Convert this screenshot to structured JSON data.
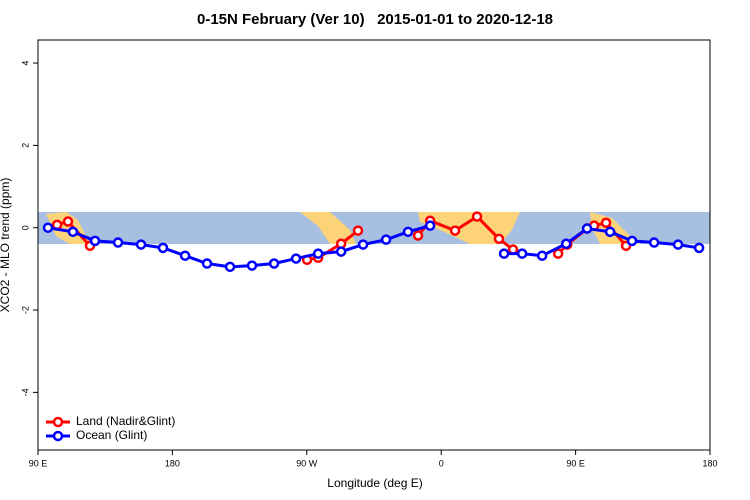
{
  "chart_data": {
    "type": "line",
    "title": "0-15N February (Ver 10)   2015-01-01 to 2020-12-18",
    "x_label": "Longitude (deg E)",
    "y_label": "XCO2 - MLO trend (ppm)",
    "xlim": [
      90,
      540
    ],
    "ylim": [
      -5.4,
      4.56
    ],
    "xticks": [
      {
        "value": 90,
        "label": "90 E"
      },
      {
        "value": 180,
        "label": "180"
      },
      {
        "value": 270,
        "label": "90 W"
      },
      {
        "value": 360,
        "label": "0"
      },
      {
        "value": 450,
        "label": "90 E"
      },
      {
        "value": 540,
        "label": "180"
      }
    ],
    "yticks": [
      4,
      2,
      0,
      -2,
      -4
    ],
    "legend": "bottom-left",
    "series": [
      {
        "name": "Land (Nadir&Glint)",
        "color": "#ff0000",
        "x": [
          102.8,
          110.1,
          124.8,
          null,
          270.2,
          277.6,
          293,
          304.3,
          null,
          344.5,
          352.6,
          369.3,
          384,
          398.7,
          408.1,
          null,
          438.3,
          444.4,
          457.7,
          462.4,
          470.4,
          483.8
        ],
        "values": [
          0.07,
          0.15,
          -0.44,
          null,
          -0.78,
          -0.73,
          -0.39,
          -0.07,
          null,
          -0.19,
          0.17,
          -0.07,
          0.27,
          -0.27,
          -0.53,
          null,
          -0.63,
          -0.41,
          -0.02,
          0.05,
          0.12,
          -0.44
        ]
      },
      {
        "name": "Ocean (Glint)",
        "color": "#0000ff",
        "x": [
          96.7,
          113.4,
          128.2,
          143.6,
          159,
          173.7,
          188.5,
          203.2,
          218.6,
          233.3,
          248.1,
          262.8,
          277.6,
          293,
          307.7,
          323.1,
          337.8,
          352.6,
          null,
          402.1,
          414.2,
          427.6,
          443.7,
          457.7,
          473.1,
          487.8,
          502.6,
          518.6,
          532.7
        ],
        "values": [
          0,
          -0.1,
          -0.32,
          -0.36,
          -0.41,
          -0.49,
          -0.68,
          -0.87,
          -0.95,
          -0.92,
          -0.87,
          -0.75,
          -0.63,
          -0.58,
          -0.41,
          -0.29,
          -0.1,
          0.05,
          null,
          -0.63,
          -0.63,
          -0.68,
          -0.39,
          -0.02,
          -0.1,
          -0.32,
          -0.36,
          -0.41,
          -0.49
        ]
      }
    ]
  }
}
